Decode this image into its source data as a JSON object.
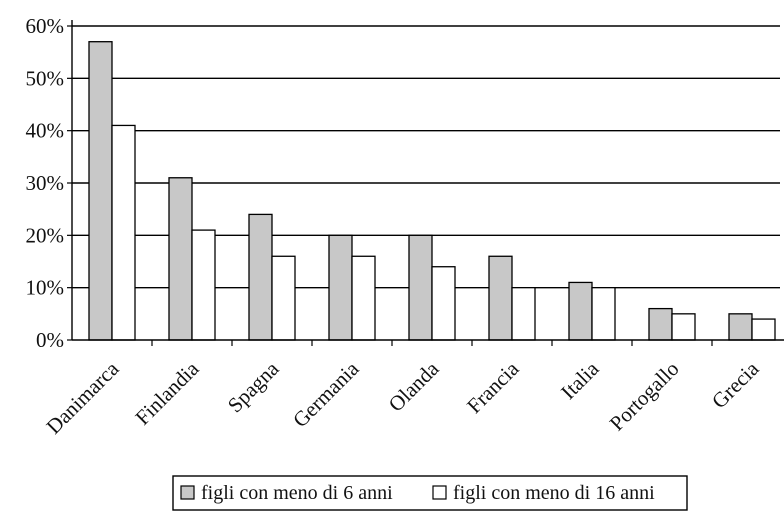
{
  "chart_data": {
    "type": "bar",
    "title": "",
    "xlabel": "",
    "ylabel": "",
    "categories": [
      "Danimarca",
      "Finlandia",
      "Spagna",
      "Germania",
      "Olanda",
      "Francia",
      "Italia",
      "Portogallo",
      "Grecia"
    ],
    "series": [
      {
        "name": "figli con meno di 6 anni",
        "color": "#c8c8c8",
        "values": [
          57,
          31,
          24,
          20,
          20,
          16,
          11,
          6,
          5
        ]
      },
      {
        "name": "figli con meno di 16 anni",
        "color": "#ffffff",
        "values": [
          41,
          21,
          16,
          16,
          14,
          10,
          10,
          5,
          4
        ]
      }
    ],
    "y_ticks": [
      "0%",
      "10%",
      "20%",
      "30%",
      "40%",
      "50%",
      "60%"
    ],
    "ylim": [
      0,
      60
    ],
    "y_unit": "%",
    "grid": true,
    "legend_position": "bottom"
  }
}
